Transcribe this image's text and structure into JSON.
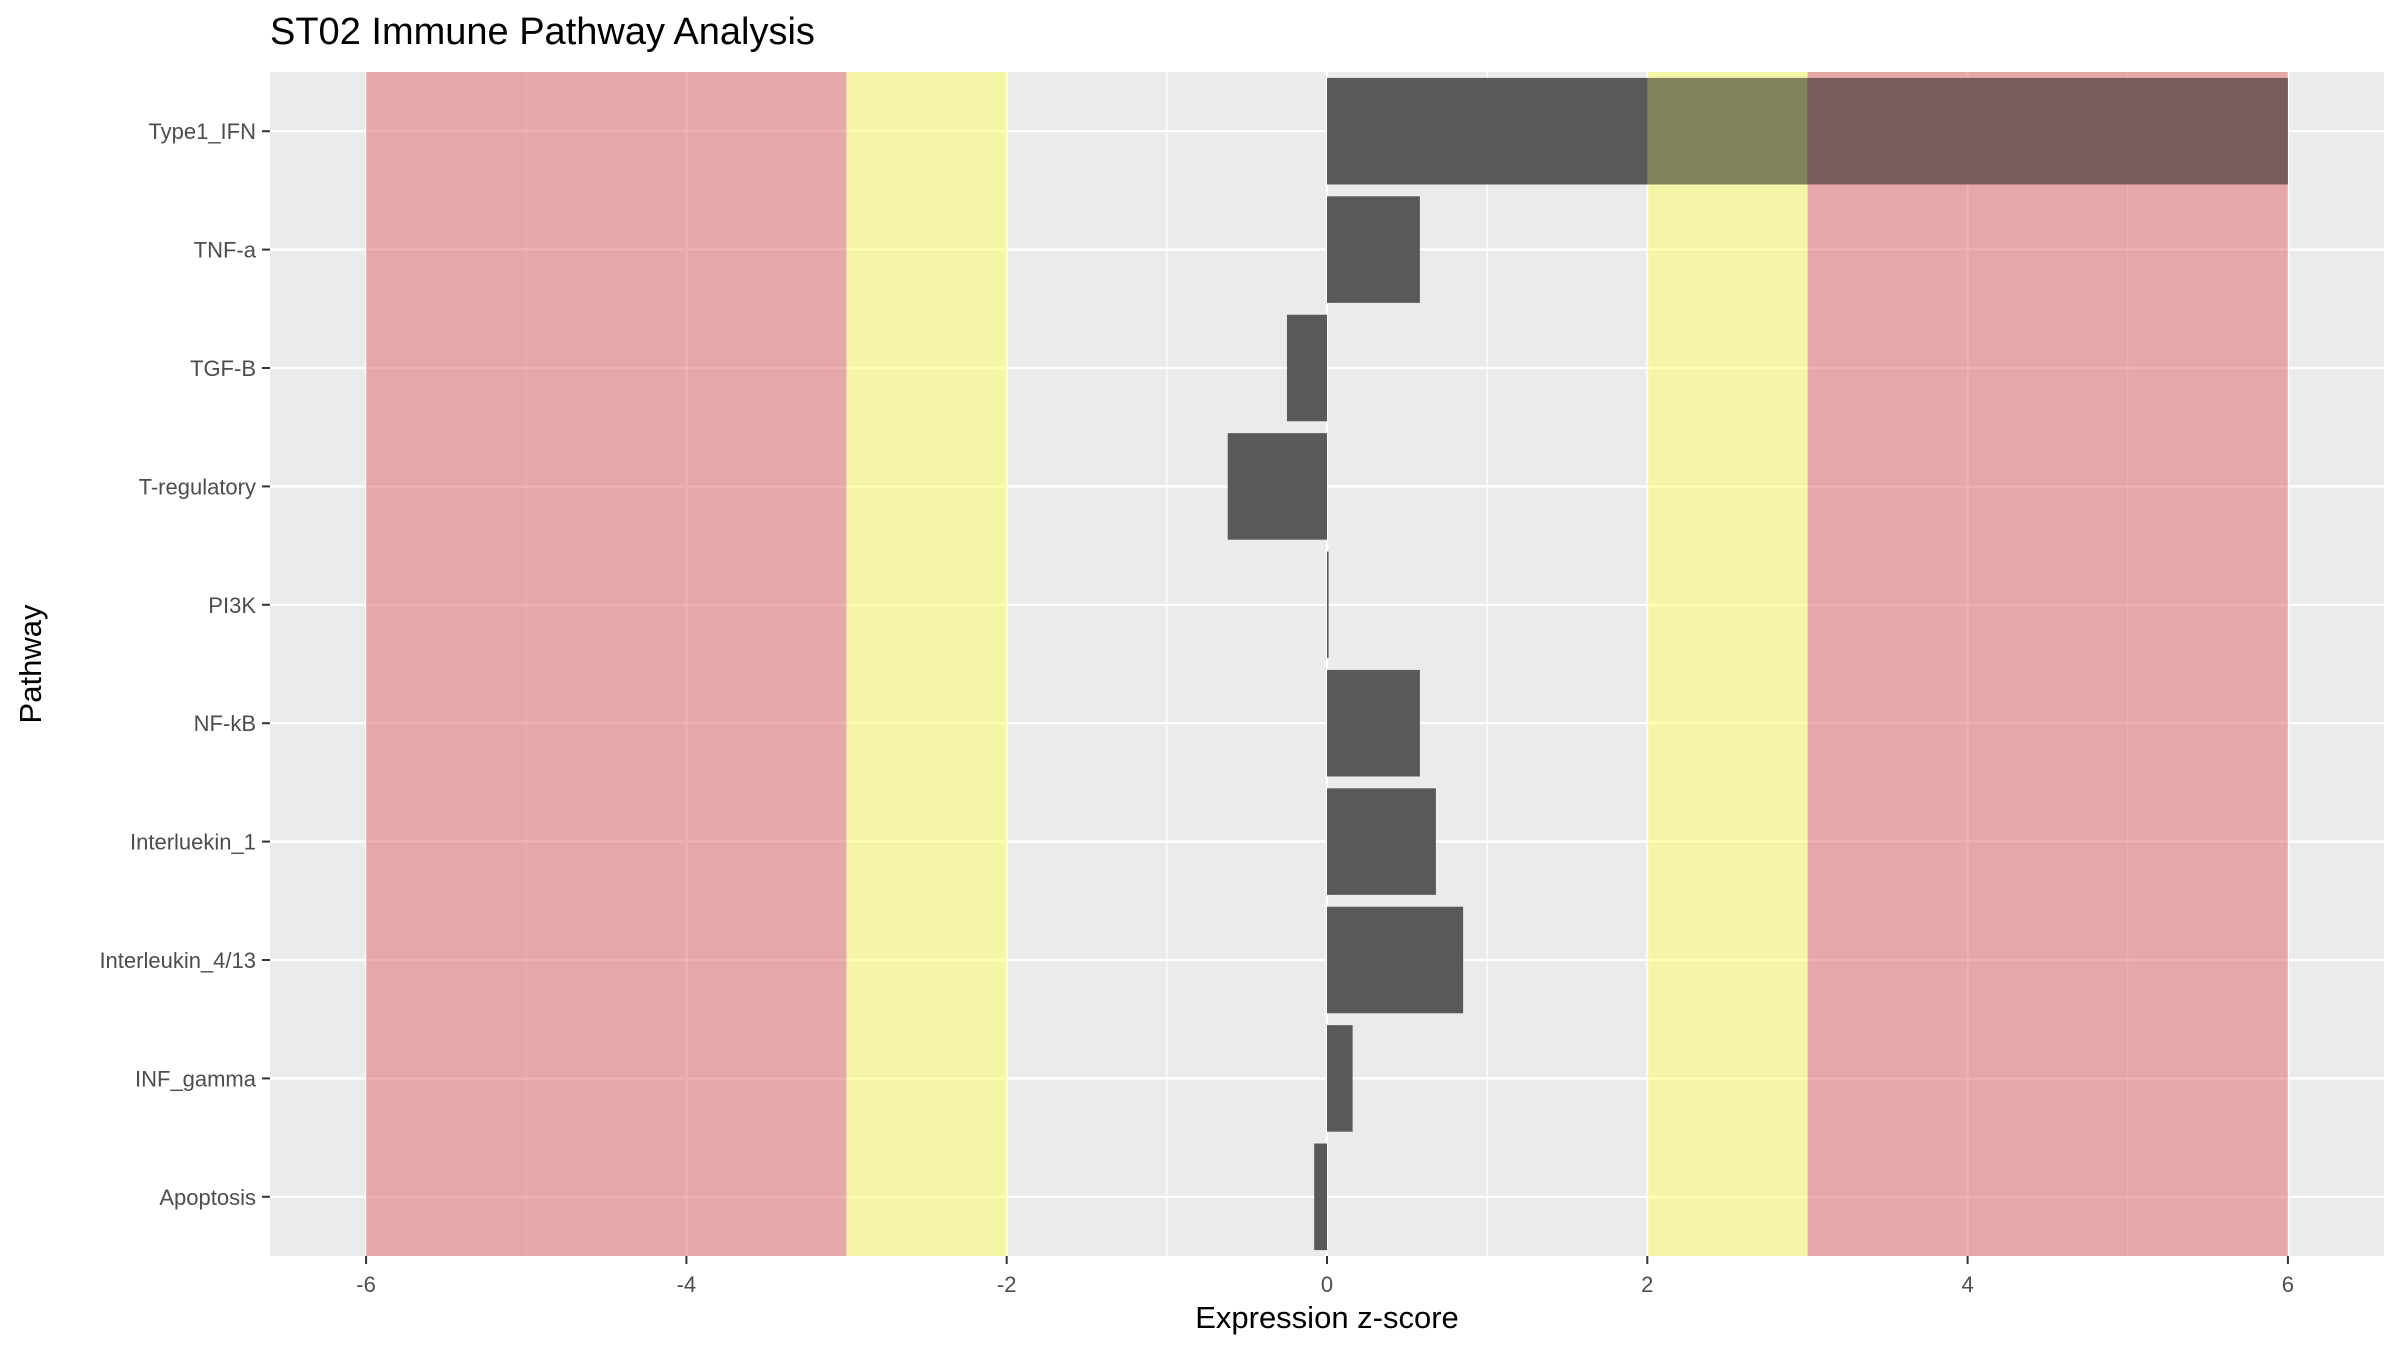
{
  "chart_data": {
    "type": "bar",
    "orientation": "horizontal",
    "title": "ST02 Immune Pathway Analysis",
    "xlabel": "Expression z-score",
    "ylabel": "Pathway",
    "xlim": [
      -6.6,
      6.6
    ],
    "xticks": [
      -6,
      -4,
      -2,
      0,
      2,
      4,
      6
    ],
    "xtick_labels": [
      "-6",
      "-4",
      "-2",
      "0",
      "2",
      "4",
      "6"
    ],
    "grid": true,
    "categories": [
      "Type1_IFN",
      "TNF-a",
      "TGF-B",
      "T-regulatory",
      "PI3K",
      "NF-kB",
      "Interluekin_1",
      "Interleukin_4/13",
      "INF_gamma",
      "Apoptosis"
    ],
    "values": [
      6.0,
      0.58,
      -0.25,
      -0.62,
      0.01,
      0.58,
      0.68,
      0.85,
      0.16,
      -0.08
    ],
    "bands": [
      {
        "from": -6,
        "to": -3,
        "color": "#e06666"
      },
      {
        "from": -3,
        "to": -2,
        "color": "#ffff66"
      },
      {
        "from": 2,
        "to": 3,
        "color": "#ffff66"
      },
      {
        "from": 3,
        "to": 6,
        "color": "#e06666"
      }
    ],
    "colors": {
      "bar": "#595959",
      "panel": "#ebebeb",
      "gridline": "#ffffff",
      "red_band": "#e06666",
      "yellow_band": "#ffff66"
    }
  }
}
